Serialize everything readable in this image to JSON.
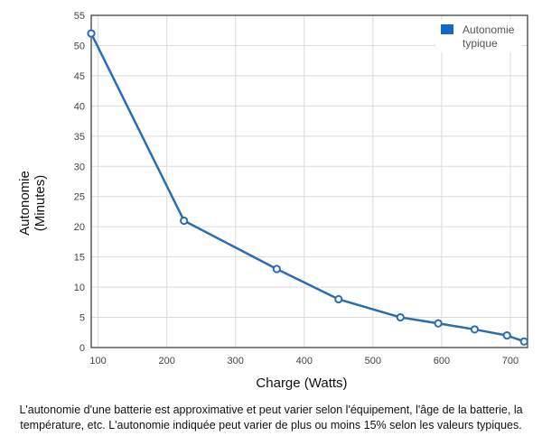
{
  "chart_data": {
    "type": "line",
    "xlabel": "Charge (Watts)",
    "ylabel_lines": [
      "Autonomie",
      "(Minutes)"
    ],
    "xlim": [
      90,
      725
    ],
    "ylim": [
      0,
      55
    ],
    "x_ticks": [
      100,
      200,
      300,
      400,
      500,
      600,
      700
    ],
    "y_ticks": [
      0,
      5,
      10,
      15,
      20,
      25,
      30,
      35,
      40,
      45,
      50,
      55
    ],
    "grid": true,
    "legend_position": "top-right",
    "series": [
      {
        "name_lines": [
          "Autonomie",
          "typique"
        ],
        "color": "#2a6db5",
        "x": [
          90,
          225,
          360,
          450,
          540,
          595,
          648,
          695,
          720
        ],
        "y": [
          52,
          21,
          13,
          8,
          5,
          4,
          3,
          2,
          1
        ]
      }
    ]
  },
  "footnote": "L'autonomie d'une batterie est approximative et peut varier selon l'équipement, l'âge de la batterie, la température, etc. L'autonomie indiquée peut varier de plus ou moins 15% selon les valeurs typiques."
}
